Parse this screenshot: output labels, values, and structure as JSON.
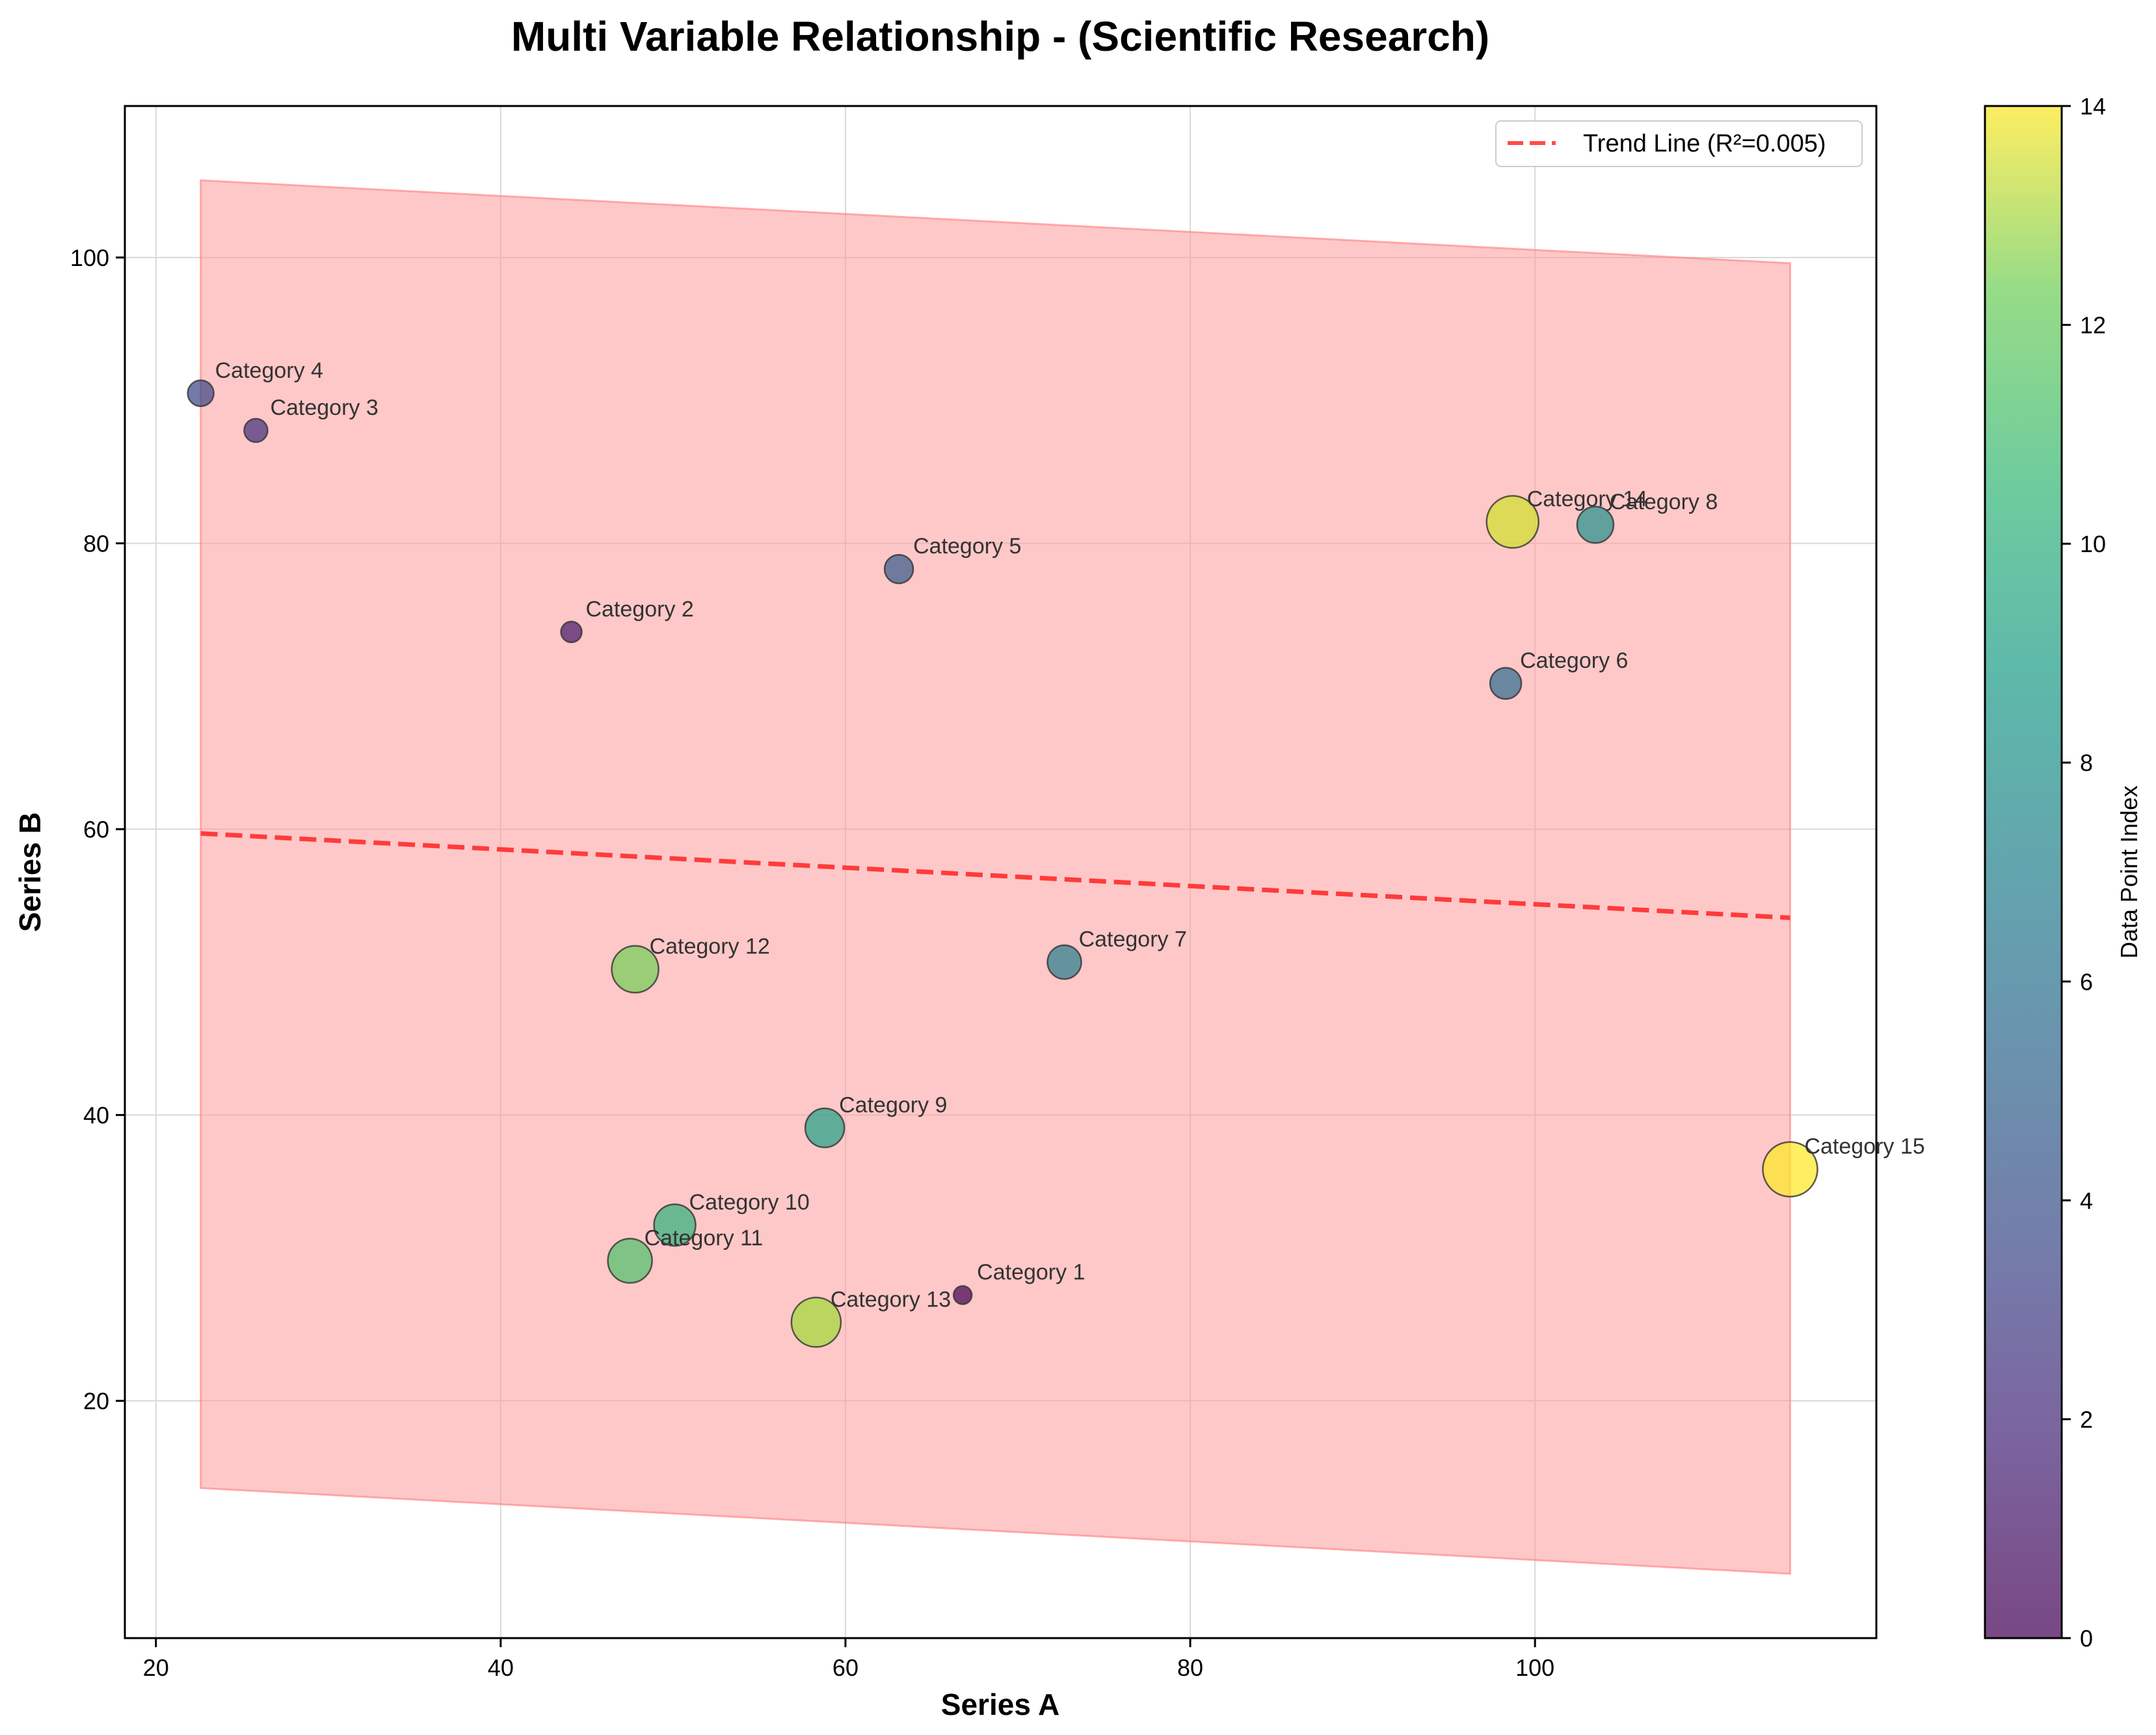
{
  "chart_data": {
    "type": "scatter",
    "title": "Multi Variable Relationship - (Scientific Research)",
    "xlabel": "Series A",
    "ylabel": "Series B",
    "xlim": [
      18.2,
      119.8
    ],
    "ylim": [
      3.4,
      110.6
    ],
    "x_ticks": [
      20,
      40,
      60,
      80,
      100
    ],
    "y_ticks": [
      20,
      40,
      60,
      80,
      100
    ],
    "grid": true,
    "legend": {
      "placement": "top-right",
      "entries": [
        "Trend Line (R²=0.005)"
      ]
    },
    "trend_line": {
      "x": [
        22.6,
        114.8
      ],
      "y": [
        59.7,
        53.8
      ],
      "color": "#ff2b2b",
      "style": "dashed"
    },
    "band": {
      "x": [
        22.6,
        114.8
      ],
      "upper": [
        105.4,
        99.6
      ],
      "lower": [
        13.9,
        7.9
      ],
      "color": "#ff9a9a"
    },
    "colorbar": {
      "label": "Data Point Index",
      "min": 0,
      "max": 14,
      "ticks": [
        0,
        2,
        4,
        6,
        8,
        10,
        12,
        14
      ],
      "colormap": "viridis"
    },
    "points": [
      {
        "label": "Category 1",
        "x": 66.8,
        "y": 27.4,
        "index": 0,
        "size": 14
      },
      {
        "label": "Category 2",
        "x": 44.1,
        "y": 73.8,
        "index": 1,
        "size": 16
      },
      {
        "label": "Category 3",
        "x": 25.8,
        "y": 87.9,
        "index": 2,
        "size": 18
      },
      {
        "label": "Category 4",
        "x": 22.6,
        "y": 90.5,
        "index": 3,
        "size": 20
      },
      {
        "label": "Category 5",
        "x": 63.1,
        "y": 78.2,
        "index": 4,
        "size": 22
      },
      {
        "label": "Category 6",
        "x": 98.3,
        "y": 70.2,
        "index": 5,
        "size": 24
      },
      {
        "label": "Category 7",
        "x": 72.7,
        "y": 50.7,
        "index": 6,
        "size": 26
      },
      {
        "label": "Category 8",
        "x": 103.5,
        "y": 81.3,
        "index": 7,
        "size": 28
      },
      {
        "label": "Category 9",
        "x": 58.8,
        "y": 39.1,
        "index": 8,
        "size": 30
      },
      {
        "label": "Category 10",
        "x": 50.1,
        "y": 32.3,
        "index": 9,
        "size": 32
      },
      {
        "label": "Category 11",
        "x": 47.5,
        "y": 29.8,
        "index": 10,
        "size": 34
      },
      {
        "label": "Category 12",
        "x": 47.8,
        "y": 50.2,
        "index": 11,
        "size": 36
      },
      {
        "label": "Category 13",
        "x": 58.3,
        "y": 25.5,
        "index": 12,
        "size": 38
      },
      {
        "label": "Category 14",
        "x": 98.7,
        "y": 81.5,
        "index": 13,
        "size": 40
      },
      {
        "label": "Category 15",
        "x": 114.8,
        "y": 36.2,
        "index": 14,
        "size": 42
      }
    ]
  }
}
